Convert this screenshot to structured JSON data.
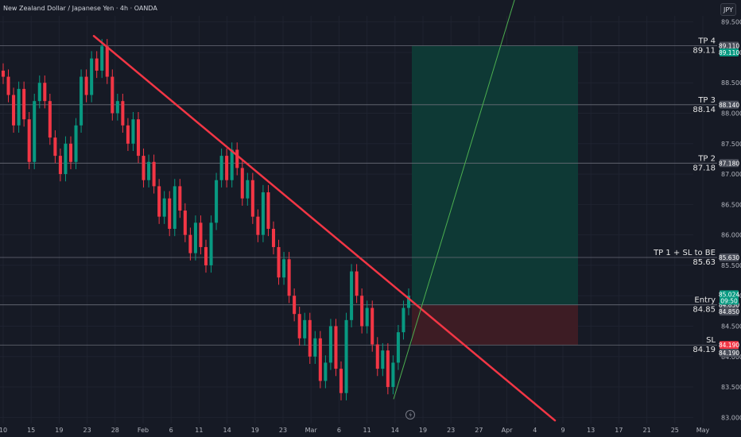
{
  "header": {
    "title": "New Zealand Dollar / Japanese Yen · 4h · OANDA",
    "currency": "JPY"
  },
  "colors": {
    "background": "#161a25",
    "grid": "#1f2330",
    "candle_up": "#089981",
    "candle_down": "#f23645",
    "trendline": "#f23645",
    "target_zone": "#0e3b36",
    "stop_zone": "#3f1c24",
    "level_line": "#6a6d78",
    "projection_line": "#4caf50",
    "badge_gray": "#4a4e5a",
    "badge_green": "#089981",
    "badge_red": "#f23645"
  },
  "chart_data": {
    "type": "candlestick",
    "title": "New Zealand Dollar / Japanese Yen · 4h · OANDA",
    "ylim": [
      82.9,
      89.6
    ],
    "y_ticks": [
      "89.500",
      "89.000",
      "88.500",
      "88.000",
      "87.500",
      "87.000",
      "86.500",
      "86.000",
      "85.500",
      "85.000",
      "84.500",
      "84.000",
      "83.500",
      "83.000"
    ],
    "y_tick_values": [
      89.5,
      89.0,
      88.5,
      88.0,
      87.5,
      87.0,
      86.5,
      86.0,
      85.5,
      85.0,
      84.5,
      84.0,
      83.5,
      83.0
    ],
    "x_ticks": [
      "10",
      "15",
      "19",
      "23",
      "28",
      "Feb",
      "6",
      "11",
      "14",
      "19",
      "23",
      "Mar",
      "6",
      "11",
      "14",
      "19",
      "23",
      "27",
      "Apr",
      "4",
      "9",
      "13",
      "17",
      "21",
      "25",
      "May"
    ],
    "grid": true,
    "levels": [
      {
        "name": "TP 4",
        "value": "89.11",
        "price": 89.11,
        "badge": "89.110",
        "badge_color": "gray"
      },
      {
        "name": "TP 3",
        "value": "88.14",
        "price": 88.14,
        "badge": "88.140",
        "badge_color": "gray"
      },
      {
        "name": "TP 2",
        "value": "87.18",
        "price": 87.18,
        "badge": "87.180",
        "badge_color": "gray"
      },
      {
        "name": "TP 1 + SL to BE",
        "value": "85.63",
        "price": 85.63,
        "badge": "85.630",
        "badge_color": "gray"
      },
      {
        "name": "Entry",
        "value": "84.85",
        "price": 84.85,
        "badge": "84.850",
        "badge_color": "gray"
      },
      {
        "name": "SL",
        "value": "84.19",
        "price": 84.19,
        "badge": "84.190",
        "badge_color": "red"
      }
    ],
    "extra_badges": [
      {
        "text": "89.110",
        "price": 89.11,
        "color": "green"
      },
      {
        "text": "85.024",
        "price": 85.024,
        "color": "green"
      },
      {
        "text": "09:50",
        "price": 84.92,
        "color": "green"
      },
      {
        "text": "84.850",
        "price": 84.85,
        "color": "gray"
      },
      {
        "text": "84.190",
        "price": 84.19,
        "color": "gray"
      }
    ],
    "trendline": {
      "start": {
        "x_index": 0.2,
        "price": 89.27
      },
      "end": {
        "x_index": 1.15,
        "price": 82.95
      }
    },
    "position": {
      "entry": 84.85,
      "stop": 84.19,
      "target": 89.11
    },
    "candles": [
      [
        88.7,
        88.6
      ],
      [
        88.6,
        88.3
      ],
      [
        88.3,
        87.8
      ],
      [
        87.8,
        88.4
      ],
      [
        88.4,
        87.9
      ],
      [
        87.9,
        87.2
      ],
      [
        87.2,
        88.2
      ],
      [
        88.2,
        88.5
      ],
      [
        88.5,
        88.2
      ],
      [
        88.2,
        87.6
      ],
      [
        87.6,
        87.3
      ],
      [
        87.3,
        87.0
      ],
      [
        87.0,
        87.5
      ],
      [
        87.5,
        87.2
      ],
      [
        87.2,
        87.8
      ],
      [
        87.8,
        88.6
      ],
      [
        88.6,
        88.3
      ],
      [
        88.3,
        88.9
      ],
      [
        88.9,
        88.7
      ],
      [
        88.7,
        89.1
      ],
      [
        89.1,
        88.6
      ],
      [
        88.6,
        88.0
      ],
      [
        88.0,
        88.2
      ],
      [
        88.2,
        87.8
      ],
      [
        87.8,
        87.5
      ],
      [
        87.5,
        87.9
      ],
      [
        87.9,
        87.3
      ],
      [
        87.3,
        86.9
      ],
      [
        86.9,
        87.2
      ],
      [
        87.2,
        86.8
      ],
      [
        86.8,
        86.3
      ],
      [
        86.3,
        86.6
      ],
      [
        86.6,
        86.1
      ],
      [
        86.1,
        86.8
      ],
      [
        86.8,
        86.4
      ],
      [
        86.4,
        86.0
      ],
      [
        86.0,
        85.7
      ],
      [
        85.7,
        86.2
      ],
      [
        86.2,
        85.8
      ],
      [
        85.8,
        85.5
      ],
      [
        85.5,
        86.2
      ],
      [
        86.2,
        86.9
      ],
      [
        86.9,
        87.3
      ],
      [
        87.3,
        86.9
      ],
      [
        86.9,
        87.4
      ],
      [
        87.4,
        87.1
      ],
      [
        87.1,
        86.6
      ],
      [
        86.6,
        86.9
      ],
      [
        86.9,
        86.3
      ],
      [
        86.3,
        86.0
      ],
      [
        86.0,
        86.7
      ],
      [
        86.7,
        86.1
      ],
      [
        86.1,
        85.8
      ],
      [
        85.8,
        85.3
      ],
      [
        85.3,
        85.6
      ],
      [
        85.6,
        85.0
      ],
      [
        85.0,
        84.7
      ],
      [
        84.7,
        84.3
      ],
      [
        84.3,
        84.6
      ],
      [
        84.6,
        84.0
      ],
      [
        84.0,
        84.3
      ],
      [
        84.3,
        83.6
      ],
      [
        83.6,
        83.9
      ],
      [
        83.9,
        84.5
      ],
      [
        84.5,
        83.8
      ],
      [
        83.8,
        83.4
      ],
      [
        83.4,
        84.6
      ],
      [
        84.6,
        85.4
      ],
      [
        85.4,
        85.0
      ],
      [
        85.0,
        84.5
      ],
      [
        84.5,
        84.8
      ],
      [
        84.8,
        84.2
      ],
      [
        84.2,
        83.8
      ],
      [
        83.8,
        84.1
      ],
      [
        84.1,
        83.5
      ],
      [
        83.5,
        83.9
      ],
      [
        83.9,
        84.4
      ],
      [
        84.4,
        84.8
      ],
      [
        84.8,
        85.0
      ]
    ]
  }
}
